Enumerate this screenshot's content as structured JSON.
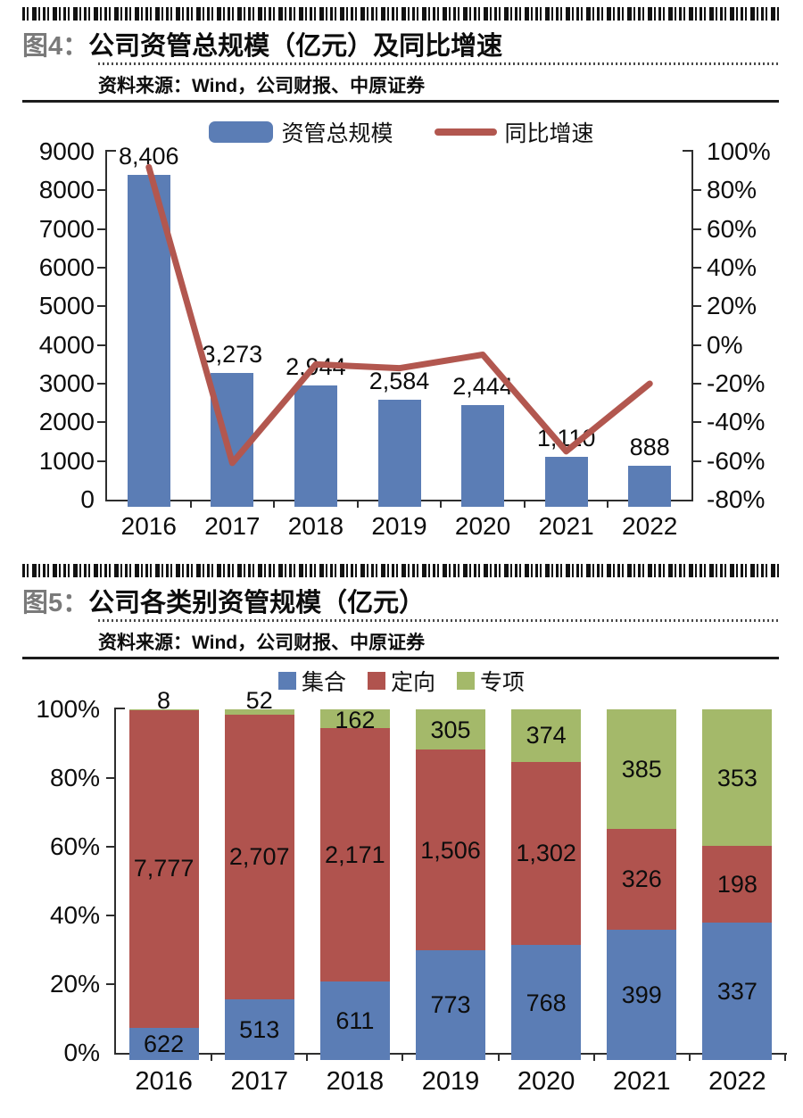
{
  "figure4": {
    "label": "图4：",
    "title": "公司资管总规模（亿元）及同比增速",
    "source": "资料来源：Wind，公司财报、中原证券"
  },
  "figure5": {
    "label": "图5：",
    "title": "公司各类别资管规模（亿元）",
    "source": "资料来源：Wind，公司财报、中原证券"
  },
  "colors": {
    "bar_blue": "#5b7db5",
    "line_red": "#b2574f",
    "stack_red": "#b0534e",
    "stack_green": "#a4b96a",
    "axis": "#2e2e2e"
  },
  "chart_data": [
    {
      "type": "bar+line",
      "title": "公司资管总规模（亿元）及同比增速",
      "categories": [
        "2016",
        "2017",
        "2018",
        "2019",
        "2020",
        "2021",
        "2022"
      ],
      "bar_series": {
        "name": "资管总规模",
        "values": [
          8406,
          3273,
          2944,
          2584,
          2444,
          1110,
          888
        ],
        "labels": [
          "8,406",
          "3,273",
          "2,944",
          "2,584",
          "2,444",
          "1,110",
          "888"
        ]
      },
      "line_series": {
        "name": "同比增速",
        "values_pct": [
          92,
          -61,
          -10,
          -12,
          -5,
          -55,
          -20
        ]
      },
      "left_axis": {
        "min": 0,
        "max": 9000,
        "step": 1000
      },
      "right_axis": {
        "min": -80,
        "max": 100,
        "step": 20,
        "suffix": "%"
      },
      "legend_position": "top",
      "grid": false
    },
    {
      "type": "stacked-bar-100",
      "title": "公司各类别资管规模（亿元）",
      "categories": [
        "2016",
        "2017",
        "2018",
        "2019",
        "2020",
        "2021",
        "2022"
      ],
      "series": [
        {
          "name": "集合",
          "color_key": "bar_blue",
          "values": [
            622,
            513,
            611,
            773,
            768,
            399,
            337
          ],
          "labels": [
            "622",
            "513",
            "611",
            "773",
            "768",
            "399",
            "337"
          ]
        },
        {
          "name": "定向",
          "color_key": "stack_red",
          "values": [
            7777,
            2707,
            2171,
            1506,
            1302,
            326,
            198
          ],
          "labels": [
            "7,777",
            "2,707",
            "2,171",
            "1,506",
            "1,302",
            "326",
            "198"
          ]
        },
        {
          "name": "专项",
          "color_key": "stack_green",
          "values": [
            8,
            52,
            162,
            305,
            374,
            385,
            353
          ],
          "labels": [
            "8",
            "52",
            "162",
            "305",
            "374",
            "385",
            "353"
          ]
        }
      ],
      "y_axis": {
        "min": 0,
        "max": 100,
        "step": 20,
        "suffix": "%"
      },
      "legend_position": "top",
      "grid": false
    }
  ]
}
